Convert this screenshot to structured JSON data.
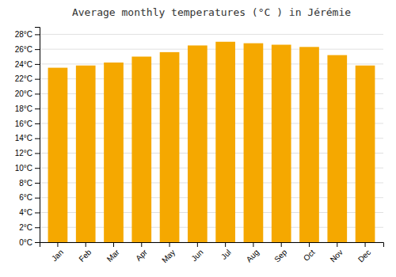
{
  "chart_data": {
    "type": "bar",
    "title": "Average monthly temperatures (°C ) in Jérémie",
    "categories": [
      "Jan",
      "Feb",
      "Mar",
      "Apr",
      "May",
      "Jun",
      "Jul",
      "Aug",
      "Sep",
      "Oct",
      "Nov",
      "Dec"
    ],
    "values": [
      23.5,
      23.8,
      24.2,
      25.0,
      25.6,
      26.5,
      27.0,
      26.8,
      26.6,
      26.3,
      25.2,
      23.8
    ],
    "color": "#F5A800",
    "ylim": [
      0,
      29
    ],
    "yticks": [
      {
        "value": 0,
        "label": "0°C"
      },
      {
        "value": 2,
        "label": "2°C"
      },
      {
        "value": 4,
        "label": "4°C"
      },
      {
        "value": 6,
        "label": "6°C"
      },
      {
        "value": 8,
        "label": "8°C"
      },
      {
        "value": 10,
        "label": "10°C"
      },
      {
        "value": 12,
        "label": "12°C"
      },
      {
        "value": 14,
        "label": "14°C"
      },
      {
        "value": 16,
        "label": "16°C"
      },
      {
        "value": 18,
        "label": "18°C"
      },
      {
        "value": 20,
        "label": "20°C"
      },
      {
        "value": 22,
        "label": "22°C"
      },
      {
        "value": 24,
        "label": "24°C"
      },
      {
        "value": 26,
        "label": "26°C"
      },
      {
        "value": 28,
        "label": "28°C"
      }
    ],
    "grid": true
  }
}
